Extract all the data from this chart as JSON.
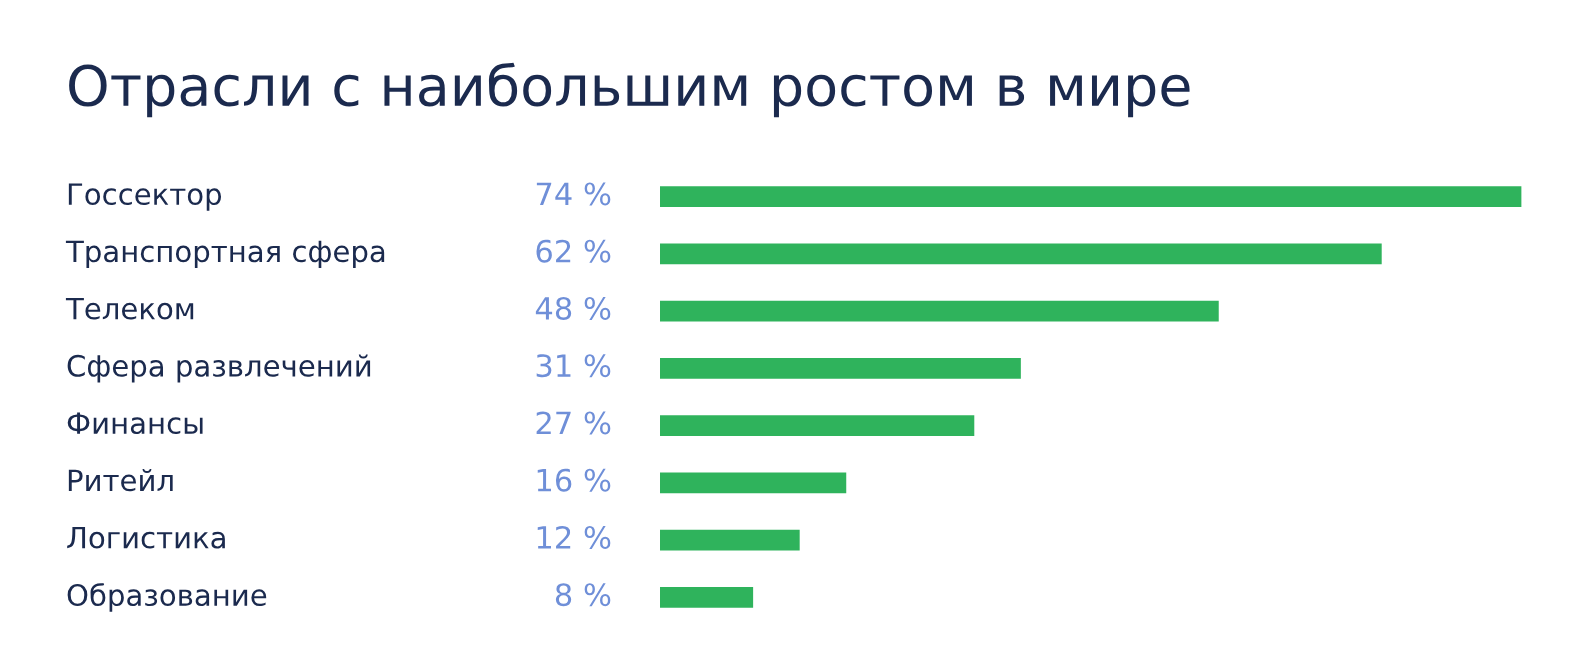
{
  "chart_data": {
    "type": "bar",
    "orientation": "horizontal",
    "title": "Отрасли с наибольшим ростом в мире",
    "categories": [
      "Госсектор",
      "Транспортная сфера",
      "Телеком",
      "Сфера развлечений",
      "Финансы",
      "Ритейл",
      "Логистика",
      "Образование"
    ],
    "values": [
      74,
      62,
      48,
      31,
      27,
      16,
      12,
      8
    ],
    "value_labels": [
      "74 %",
      "62 %",
      "48 %",
      "31 %",
      "27 %",
      "16 %",
      "12 %",
      "8 %"
    ],
    "color": "#2fb35c"
  }
}
